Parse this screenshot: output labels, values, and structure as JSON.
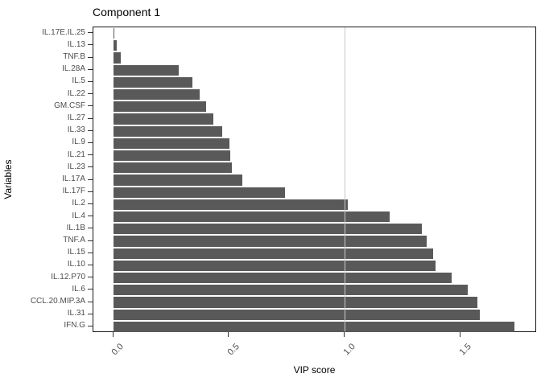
{
  "chart_data": {
    "type": "bar",
    "orientation": "horizontal",
    "title": "Component 1",
    "xlabel": "VIP score",
    "ylabel": "Variables",
    "categories": [
      "IL.17E.IL.25",
      "IL.13",
      "TNF.B",
      "IL.28A",
      "IL.5",
      "IL.22",
      "GM.CSF",
      "IL.27",
      "IL.33",
      "IL.9",
      "IL.21",
      "IL.23",
      "IL.17A",
      "IL.17F",
      "IL.2",
      "IL.4",
      "IL.1B",
      "TNF.A",
      "IL.15",
      "IL.10",
      "IL.12.P70",
      "IL.6",
      "CCL.20.MIP.3A",
      "IL.31",
      "IFN.G"
    ],
    "values": [
      0.005,
      0.015,
      0.03,
      0.28,
      0.34,
      0.37,
      0.4,
      0.43,
      0.47,
      0.5,
      0.505,
      0.51,
      0.555,
      0.74,
      1.01,
      1.19,
      1.33,
      1.35,
      1.38,
      1.39,
      1.46,
      1.53,
      1.57,
      1.58,
      1.73
    ],
    "x_tick_values": [
      0.0,
      0.5,
      1.0,
      1.5
    ],
    "x_tick_labels": [
      "0.0",
      "0.5",
      "1.0",
      "1.5"
    ],
    "xlim": [
      -0.087,
      1.827
    ],
    "reference_line_x": 1.0,
    "grid": false,
    "legend": "none",
    "colors": {
      "bar": "#595959",
      "reference_line": "#c8c8c8",
      "axis_text": "#4d4d4d",
      "title_text": "#000000",
      "panel_border": "#1a1a1a"
    }
  }
}
